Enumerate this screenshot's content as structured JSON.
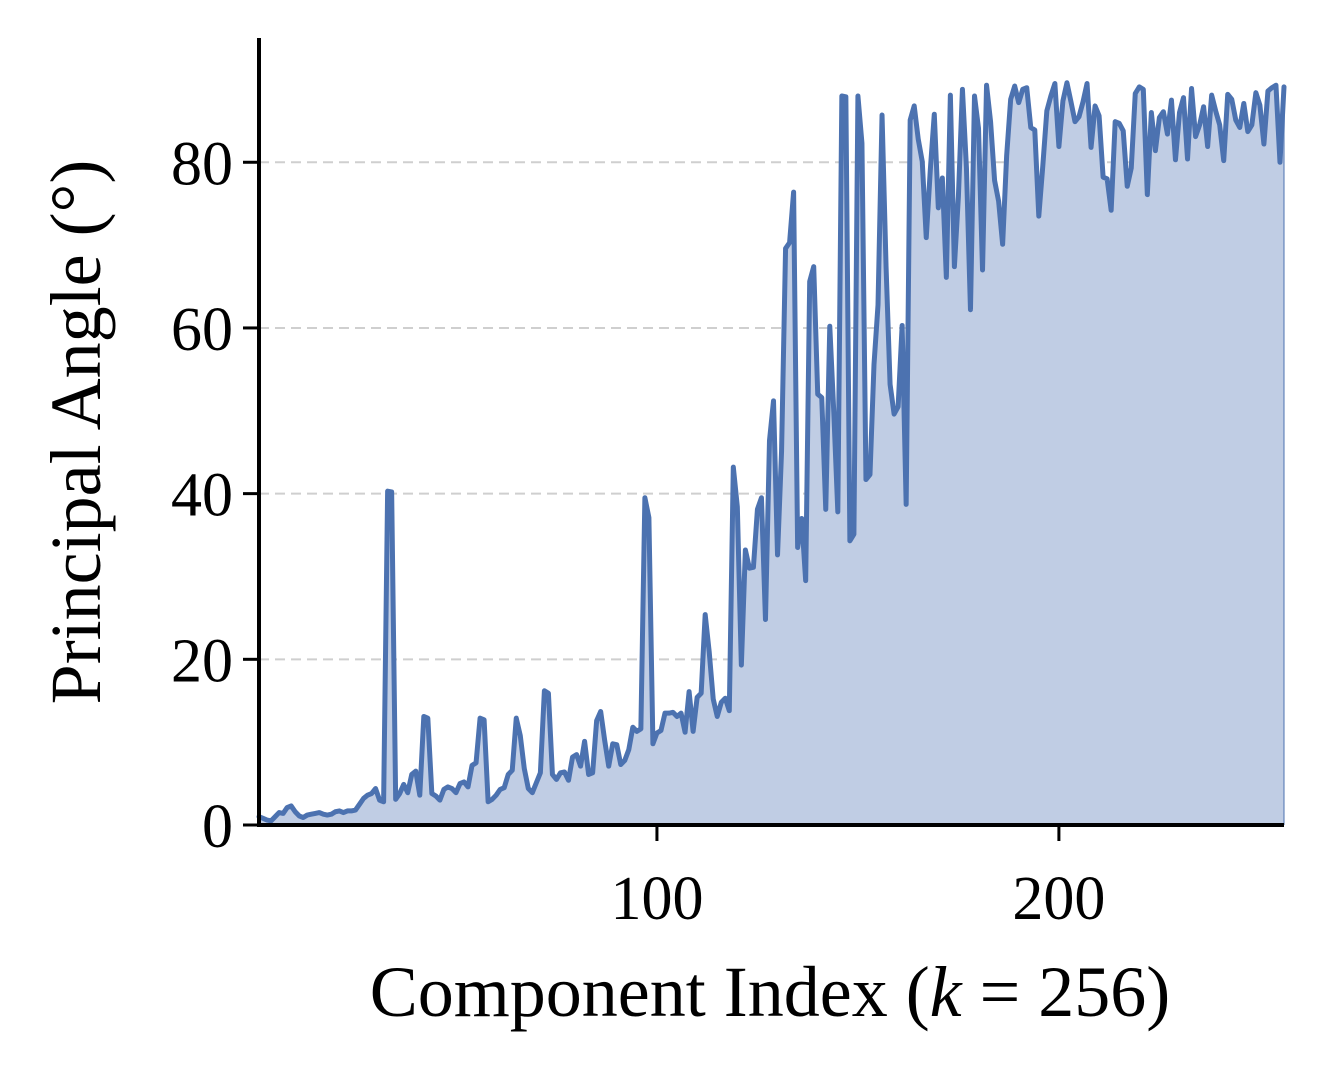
{
  "chart_data": {
    "type": "area",
    "title": "",
    "xlabel": "Component Index (k = 256)",
    "xlabel_parts": {
      "prefix": "Component Index (",
      "variable": "k",
      "suffix": " = 256)"
    },
    "ylabel": "Principal Angle (°)",
    "xlim": [
      1,
      256
    ],
    "ylim": [
      0,
      95
    ],
    "xticks": [
      100,
      200
    ],
    "yticks": [
      0,
      20,
      40,
      60,
      80
    ],
    "grid": "horizontal dashed",
    "legend": "none",
    "line_color": "#4c72b0",
    "fill_color": "#c0cde4",
    "series": [
      {
        "values": [
          1.0,
          0.8,
          0.6,
          0.5,
          1.0,
          1.5,
          1.4,
          2.1,
          2.3,
          1.6,
          1.1,
          0.9,
          1.2,
          1.3,
          1.4,
          1.5,
          1.3,
          1.2,
          1.3,
          1.6,
          1.7,
          1.5,
          1.7,
          1.7,
          1.8,
          2.5,
          3.2,
          3.6,
          3.8,
          4.4,
          3.0,
          2.8,
          40.3,
          40.2,
          3.1,
          3.8,
          4.9,
          3.9,
          6.1,
          6.5,
          3.6,
          13.1,
          12.9,
          3.8,
          3.5,
          3.0,
          4.3,
          4.6,
          4.4,
          3.9,
          5.0,
          5.2,
          4.6,
          7.2,
          7.5,
          12.9,
          12.7,
          2.8,
          3.1,
          3.6,
          4.3,
          4.5,
          6.1,
          6.6,
          12.9,
          10.8,
          6.8,
          4.4,
          3.9,
          5.1,
          6.3,
          16.2,
          15.9,
          6.1,
          5.5,
          6.3,
          6.4,
          5.4,
          8.2,
          8.5,
          7.1,
          10.1,
          6.1,
          6.3,
          12.6,
          13.7,
          10.2,
          7.1,
          9.8,
          9.7,
          7.3,
          7.8,
          9.1,
          11.8,
          11.3,
          11.6,
          39.5,
          37.1,
          9.8,
          11.1,
          11.4,
          13.5,
          13.5,
          13.6,
          13.1,
          13.5,
          11.2,
          16.1,
          11.3,
          15.4,
          15.9,
          25.4,
          20.9,
          15.2,
          13.1,
          14.8,
          15.3,
          13.8,
          43.2,
          38.4,
          19.3,
          33.2,
          31.0,
          31.1,
          38.1,
          39.5,
          24.8,
          46.4,
          51.2,
          32.6,
          45.1,
          69.6,
          70.3,
          76.4,
          33.5,
          37.0,
          29.5,
          65.6,
          67.4,
          52.0,
          51.6,
          38.1,
          60.2,
          49.8,
          37.8,
          88.0,
          87.9,
          34.3,
          35.1,
          88.0,
          82.3,
          41.7,
          42.3,
          55.6,
          62.8,
          85.7,
          67.4,
          53.2,
          49.6,
          50.5,
          60.3,
          38.7,
          85.1,
          86.8,
          82.8,
          80.1,
          70.9,
          79.0,
          85.8,
          74.5,
          78.1,
          66.1,
          88.1,
          67.4,
          75.9,
          88.8,
          79.3,
          62.2,
          88.0,
          84.1,
          67.0,
          89.3,
          84.9,
          77.8,
          75.3,
          70.1,
          80.8,
          87.6,
          89.2,
          87.2,
          88.8,
          89.0,
          84.2,
          83.9,
          73.5,
          79.6,
          86.2,
          88.0,
          89.5,
          81.9,
          87.4,
          89.6,
          87.3,
          84.9,
          85.5,
          87.3,
          89.5,
          81.8,
          86.8,
          85.6,
          78.2,
          78.0,
          74.2,
          84.9,
          84.7,
          83.8,
          77.1,
          79.3,
          88.3,
          89.1,
          88.8,
          76.1,
          86.0,
          81.4,
          85.4,
          86.1,
          83.4,
          87.5,
          80.3,
          86.0,
          87.8,
          80.4,
          88.9,
          83.1,
          84.5,
          86.7,
          81.9,
          88.1,
          86.2,
          84.5,
          80.2,
          88.2,
          87.6,
          85.1,
          84.2,
          87.1,
          83.7,
          84.5,
          88.4,
          86.9,
          82.2,
          88.6,
          89.0,
          89.3,
          80.0,
          89.1
        ]
      }
    ]
  }
}
